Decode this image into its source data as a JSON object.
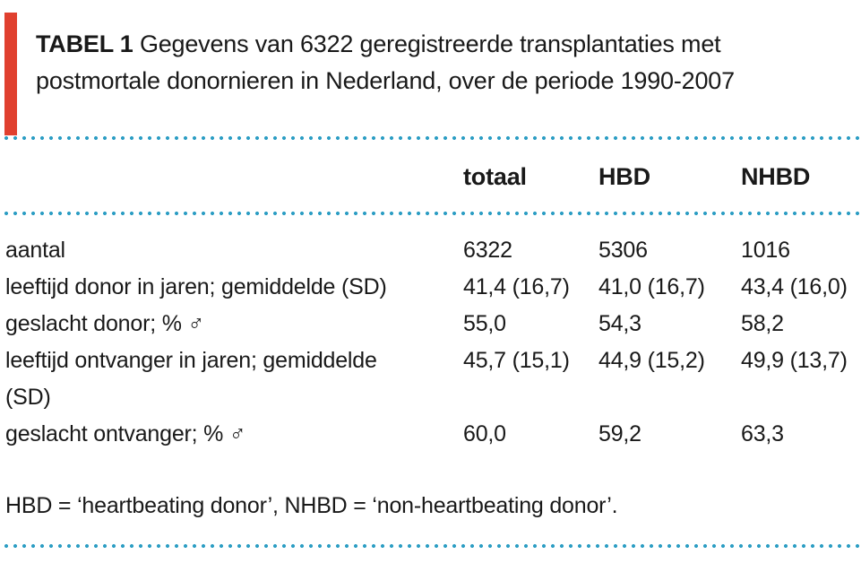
{
  "caption": {
    "tag": "TABEL 1",
    "text": "Gegevens van 6322 geregistreerde transplantaties met postmortale donornieren in Nederland, over de periode 1990-2007"
  },
  "table": {
    "columns": [
      "totaal",
      "HBD",
      "NHBD"
    ],
    "rows": [
      {
        "label": "aantal",
        "values": [
          "6322",
          "5306",
          "1016"
        ]
      },
      {
        "label": "leeftijd donor in jaren; gemiddelde (SD)",
        "values": [
          "41,4 (16,7)",
          "41,0 (16,7)",
          "43,4 (16,0)"
        ]
      },
      {
        "label": "geslacht donor; % ♂",
        "values": [
          "55,0",
          "54,3",
          "58,2"
        ]
      },
      {
        "label": "leeftijd ontvanger in jaren; gemiddelde (SD)",
        "values": [
          "45,7 (15,1)",
          "44,9 (15,2)",
          "49,9 (13,7)"
        ]
      },
      {
        "label": "geslacht ontvanger; % ♂",
        "values": [
          "60,0",
          "59,2",
          "63,3"
        ]
      }
    ]
  },
  "footnote": "HBD = ‘heartbeating donor’, NHBD = ‘non-heartbeating donor’.",
  "colors": {
    "accent_red": "#e0402f",
    "dot_blue": "#2d9ec4",
    "text": "#191919"
  }
}
